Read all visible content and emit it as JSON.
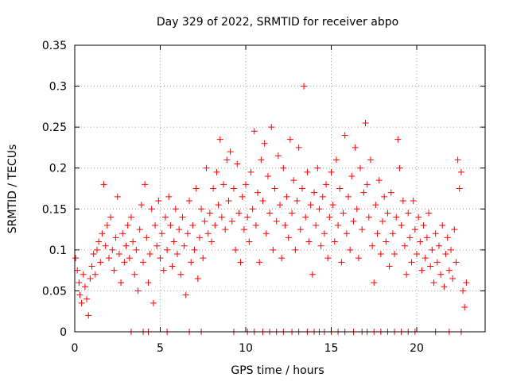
{
  "chart_data": {
    "type": "scatter",
    "title": "Day 329 of 2022, SRMTID for receiver abpo",
    "xlabel": "GPS time / hours",
    "ylabel": "SRMTID / TECUs",
    "xlim": [
      0,
      24
    ],
    "ylim": [
      0,
      0.35
    ],
    "x_ticks": [
      0,
      5,
      10,
      15,
      20
    ],
    "x_tick_labels": [
      "0",
      "5",
      "10",
      "15",
      "20"
    ],
    "y_ticks": [
      0,
      0.05,
      0.1,
      0.15,
      0.2,
      0.25,
      0.3,
      0.35
    ],
    "y_tick_labels": [
      "0",
      "0.05",
      "0.1",
      "0.15",
      "0.2",
      "0.25",
      "0.3",
      "0.35"
    ],
    "grid": true,
    "marker": "plus",
    "color": "#ff0000",
    "series": [
      {
        "name": "SRMTID",
        "points": [
          [
            0.05,
            0.09
          ],
          [
            0.15,
            0.075
          ],
          [
            0.25,
            0.06
          ],
          [
            0.3,
            0.045
          ],
          [
            0.4,
            0.035
          ],
          [
            0.5,
            0.07
          ],
          [
            0.6,
            0.055
          ],
          [
            0.7,
            0.04
          ],
          [
            0.8,
            0.02
          ],
          [
            0.9,
            0.065
          ],
          [
            1.0,
            0.08
          ],
          [
            1.1,
            0.095
          ],
          [
            1.2,
            0.07
          ],
          [
            1.3,
            0.1
          ],
          [
            1.4,
            0.11
          ],
          [
            1.5,
            0.085
          ],
          [
            1.6,
            0.12
          ],
          [
            1.7,
            0.18
          ],
          [
            1.8,
            0.105
          ],
          [
            1.9,
            0.13
          ],
          [
            2.0,
            0.09
          ],
          [
            2.1,
            0.14
          ],
          [
            2.2,
            0.1
          ],
          [
            2.3,
            0.075
          ],
          [
            2.4,
            0.115
          ],
          [
            2.5,
            0.165
          ],
          [
            2.6,
            0.095
          ],
          [
            2.7,
            0.06
          ],
          [
            2.8,
            0.12
          ],
          [
            2.9,
            0.085
          ],
          [
            3.0,
            0.105
          ],
          [
            3.1,
            0.13
          ],
          [
            3.2,
            0.09
          ],
          [
            3.3,
            0.14
          ],
          [
            3.4,
            0.11
          ],
          [
            3.5,
            0.07
          ],
          [
            3.6,
            0.1
          ],
          [
            3.7,
            0.05
          ],
          [
            3.8,
            0.125
          ],
          [
            3.9,
            0.155
          ],
          [
            4.0,
            0.085
          ],
          [
            4.1,
            0.18
          ],
          [
            4.2,
            0.115
          ],
          [
            4.3,
            0.06
          ],
          [
            4.4,
            0.095
          ],
          [
            4.5,
            0.15
          ],
          [
            4.6,
            0.035
          ],
          [
            4.7,
            0.13
          ],
          [
            4.8,
            0.105
          ],
          [
            4.9,
            0.16
          ],
          [
            5.0,
            0.09
          ],
          [
            5.1,
            0.12
          ],
          [
            5.2,
            0.075
          ],
          [
            5.3,
            0.14
          ],
          [
            5.4,
            0.1
          ],
          [
            5.5,
            0.165
          ],
          [
            5.6,
            0.13
          ],
          [
            5.7,
            0.08
          ],
          [
            5.8,
            0.11
          ],
          [
            5.9,
            0.15
          ],
          [
            6.0,
            0.095
          ],
          [
            6.1,
            0.125
          ],
          [
            6.2,
            0.07
          ],
          [
            6.3,
            0.14
          ],
          [
            6.4,
            0.105
          ],
          [
            6.5,
            0.045
          ],
          [
            6.6,
            0.12
          ],
          [
            6.7,
            0.16
          ],
          [
            6.8,
            0.085
          ],
          [
            6.9,
            0.13
          ],
          [
            7.0,
            0.1
          ],
          [
            7.1,
            0.175
          ],
          [
            7.2,
            0.065
          ],
          [
            7.3,
            0.115
          ],
          [
            7.4,
            0.15
          ],
          [
            7.5,
            0.09
          ],
          [
            7.6,
            0.135
          ],
          [
            7.7,
            0.2
          ],
          [
            7.8,
            0.12
          ],
          [
            7.9,
            0.145
          ],
          [
            8.0,
            0.11
          ],
          [
            8.1,
            0.175
          ],
          [
            8.2,
            0.13
          ],
          [
            8.3,
            0.195
          ],
          [
            8.4,
            0.155
          ],
          [
            8.5,
            0.235
          ],
          [
            8.6,
            0.14
          ],
          [
            8.7,
            0.18
          ],
          [
            8.8,
            0.125
          ],
          [
            8.9,
            0.21
          ],
          [
            9.0,
            0.16
          ],
          [
            9.1,
            0.22
          ],
          [
            9.2,
            0.135
          ],
          [
            9.3,
            0.175
          ],
          [
            9.4,
            0.1
          ],
          [
            9.5,
            0.205
          ],
          [
            9.6,
            0.145
          ],
          [
            9.7,
            0.085
          ],
          [
            9.8,
            0.165
          ],
          [
            9.9,
            0.125
          ],
          [
            10.0,
            0.18
          ],
          [
            10.1,
            0.14
          ],
          [
            10.2,
            0.11
          ],
          [
            10.3,
            0.195
          ],
          [
            10.4,
            0.15
          ],
          [
            10.5,
            0.245
          ],
          [
            10.6,
            0.13
          ],
          [
            10.7,
            0.17
          ],
          [
            10.8,
            0.085
          ],
          [
            10.9,
            0.21
          ],
          [
            11.0,
            0.16
          ],
          [
            11.1,
            0.23
          ],
          [
            11.2,
            0.12
          ],
          [
            11.3,
            0.19
          ],
          [
            11.4,
            0.145
          ],
          [
            11.5,
            0.25
          ],
          [
            11.6,
            0.1
          ],
          [
            11.7,
            0.175
          ],
          [
            11.8,
            0.135
          ],
          [
            11.9,
            0.215
          ],
          [
            12.0,
            0.155
          ],
          [
            12.1,
            0.09
          ],
          [
            12.2,
            0.2
          ],
          [
            12.3,
            0.13
          ],
          [
            12.4,
            0.165
          ],
          [
            12.5,
            0.115
          ],
          [
            12.6,
            0.235
          ],
          [
            12.7,
            0.145
          ],
          [
            12.8,
            0.185
          ],
          [
            12.9,
            0.1
          ],
          [
            13.0,
            0.16
          ],
          [
            13.1,
            0.225
          ],
          [
            13.2,
            0.125
          ],
          [
            13.3,
            0.175
          ],
          [
            13.4,
            0.3
          ],
          [
            13.5,
            0.14
          ],
          [
            13.6,
            0.195
          ],
          [
            13.7,
            0.11
          ],
          [
            13.8,
            0.155
          ],
          [
            13.9,
            0.07
          ],
          [
            14.0,
            0.17
          ],
          [
            14.1,
            0.13
          ],
          [
            14.2,
            0.2
          ],
          [
            14.3,
            0.15
          ],
          [
            14.4,
            0.105
          ],
          [
            14.5,
            0.165
          ],
          [
            14.6,
            0.12
          ],
          [
            14.7,
            0.18
          ],
          [
            14.8,
            0.09
          ],
          [
            14.9,
            0.14
          ],
          [
            15.0,
            0.195
          ],
          [
            15.1,
            0.155
          ],
          [
            15.2,
            0.11
          ],
          [
            15.3,
            0.21
          ],
          [
            15.4,
            0.13
          ],
          [
            15.5,
            0.175
          ],
          [
            15.6,
            0.085
          ],
          [
            15.7,
            0.145
          ],
          [
            15.8,
            0.24
          ],
          [
            15.9,
            0.12
          ],
          [
            16.0,
            0.165
          ],
          [
            16.1,
            0.1
          ],
          [
            16.2,
            0.19
          ],
          [
            16.3,
            0.135
          ],
          [
            16.4,
            0.225
          ],
          [
            16.5,
            0.15
          ],
          [
            16.6,
            0.09
          ],
          [
            16.7,
            0.2
          ],
          [
            16.8,
            0.125
          ],
          [
            16.9,
            0.17
          ],
          [
            17.0,
            0.255
          ],
          [
            17.1,
            0.18
          ],
          [
            17.2,
            0.14
          ],
          [
            17.3,
            0.21
          ],
          [
            17.4,
            0.105
          ],
          [
            17.5,
            0.06
          ],
          [
            17.6,
            0.155
          ],
          [
            17.7,
            0.12
          ],
          [
            17.8,
            0.185
          ],
          [
            17.9,
            0.095
          ],
          [
            18.0,
            0.135
          ],
          [
            18.1,
            0.165
          ],
          [
            18.2,
            0.11
          ],
          [
            18.3,
            0.145
          ],
          [
            18.4,
            0.08
          ],
          [
            18.5,
            0.17
          ],
          [
            18.6,
            0.12
          ],
          [
            18.7,
            0.095
          ],
          [
            18.8,
            0.14
          ],
          [
            18.9,
            0.235
          ],
          [
            19.0,
            0.2
          ],
          [
            19.1,
            0.13
          ],
          [
            19.2,
            0.16
          ],
          [
            19.3,
            0.105
          ],
          [
            19.4,
            0.07
          ],
          [
            19.5,
            0.145
          ],
          [
            19.6,
            0.115
          ],
          [
            19.7,
            0.085
          ],
          [
            19.8,
            0.16
          ],
          [
            19.9,
            0.125
          ],
          [
            20.0,
            0.095
          ],
          [
            20.1,
            0.14
          ],
          [
            20.2,
            0.11
          ],
          [
            20.3,
            0.075
          ],
          [
            20.4,
            0.13
          ],
          [
            20.5,
            0.09
          ],
          [
            20.6,
            0.115
          ],
          [
            20.7,
            0.145
          ],
          [
            20.8,
            0.08
          ],
          [
            20.9,
            0.1
          ],
          [
            21.0,
            0.06
          ],
          [
            21.1,
            0.12
          ],
          [
            21.2,
            0.085
          ],
          [
            21.3,
            0.105
          ],
          [
            21.4,
            0.07
          ],
          [
            21.5,
            0.13
          ],
          [
            21.6,
            0.055
          ],
          [
            21.7,
            0.095
          ],
          [
            21.8,
            0.115
          ],
          [
            21.9,
            0.075
          ],
          [
            22.0,
            0.1
          ],
          [
            22.1,
            0.065
          ],
          [
            22.2,
            0.125
          ],
          [
            22.3,
            0.085
          ],
          [
            22.4,
            0.21
          ],
          [
            22.5,
            0.175
          ],
          [
            22.6,
            0.195
          ],
          [
            22.7,
            0.05
          ],
          [
            22.8,
            0.03
          ],
          [
            22.9,
            0.06
          ],
          [
            3.3,
            0.0
          ],
          [
            4.0,
            0.0
          ],
          [
            4.3,
            0.0
          ],
          [
            5.4,
            0.0
          ],
          [
            6.7,
            0.0
          ],
          [
            7.4,
            0.0
          ],
          [
            9.3,
            0.0
          ],
          [
            10.1,
            0.0
          ],
          [
            10.5,
            0.0
          ],
          [
            11.0,
            0.0
          ],
          [
            11.4,
            0.0
          ],
          [
            11.8,
            0.0
          ],
          [
            12.2,
            0.0
          ],
          [
            12.7,
            0.0
          ],
          [
            13.1,
            0.0
          ],
          [
            13.6,
            0.0
          ],
          [
            14.0,
            0.0
          ],
          [
            14.3,
            0.0
          ],
          [
            14.6,
            0.0
          ],
          [
            15.0,
            0.0
          ],
          [
            15.4,
            0.0
          ],
          [
            15.8,
            0.0
          ],
          [
            16.3,
            0.0
          ],
          [
            16.8,
            0.0
          ],
          [
            17.1,
            0.0
          ],
          [
            17.5,
            0.0
          ],
          [
            17.9,
            0.0
          ],
          [
            18.3,
            0.0
          ],
          [
            18.7,
            0.0
          ],
          [
            19.1,
            0.0
          ],
          [
            19.5,
            0.0
          ],
          [
            19.9,
            0.0
          ],
          [
            21.1,
            0.0
          ],
          [
            21.9,
            0.0
          ],
          [
            22.6,
            0.0
          ]
        ]
      }
    ]
  }
}
